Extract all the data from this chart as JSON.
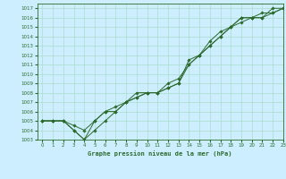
{
  "title": "Graphe pression niveau de la mer (hPa)",
  "bg_color": "#cceeff",
  "grid_color": "#aaddcc",
  "line_color": "#2d6a2d",
  "marker_color": "#2d6a2d",
  "xlim": [
    -0.5,
    23
  ],
  "ylim": [
    1003,
    1017.5
  ],
  "xticks": [
    0,
    1,
    2,
    3,
    4,
    5,
    6,
    7,
    8,
    9,
    10,
    11,
    12,
    13,
    14,
    15,
    16,
    17,
    18,
    19,
    20,
    21,
    22,
    23
  ],
  "yticks": [
    1003,
    1004,
    1005,
    1006,
    1007,
    1008,
    1009,
    1010,
    1011,
    1012,
    1013,
    1014,
    1015,
    1016,
    1017
  ],
  "series1_x": [
    0,
    1,
    2,
    3,
    4,
    5,
    6,
    7,
    8,
    9,
    10,
    11,
    12,
    13,
    14,
    15,
    16,
    17,
    18,
    19,
    20,
    21,
    22,
    23
  ],
  "series1_y": [
    1005,
    1005,
    1005,
    1004.5,
    1004,
    1005,
    1006,
    1006.5,
    1007,
    1007.5,
    1008,
    1008,
    1008.5,
    1009,
    1011,
    1012,
    1013,
    1014,
    1015,
    1016,
    1016,
    1016,
    1017,
    1017
  ],
  "series2_x": [
    0,
    1,
    2,
    3,
    4,
    5,
    6,
    7,
    8,
    9,
    10,
    11,
    12,
    13,
    14,
    15,
    16,
    17,
    18,
    19,
    20,
    21,
    22,
    23
  ],
  "series2_y": [
    1005,
    1005,
    1005,
    1004,
    1003,
    1005,
    1006,
    1006,
    1007,
    1007.5,
    1008,
    1008,
    1008.5,
    1009,
    1011.5,
    1012,
    1013,
    1014,
    1015,
    1016,
    1016,
    1016.5,
    1016.5,
    1017
  ],
  "series3_x": [
    0,
    1,
    2,
    3,
    4,
    5,
    6,
    7,
    8,
    9,
    10,
    11,
    12,
    13,
    14,
    15,
    16,
    17,
    18,
    19,
    20,
    21,
    22,
    23
  ],
  "series3_y": [
    1005,
    1005,
    1005,
    1004,
    1003,
    1004,
    1005,
    1006,
    1007,
    1008,
    1008,
    1008,
    1009,
    1009.5,
    1011,
    1012,
    1013.5,
    1014.5,
    1015,
    1015.5,
    1016,
    1016,
    1016.5,
    1017
  ]
}
